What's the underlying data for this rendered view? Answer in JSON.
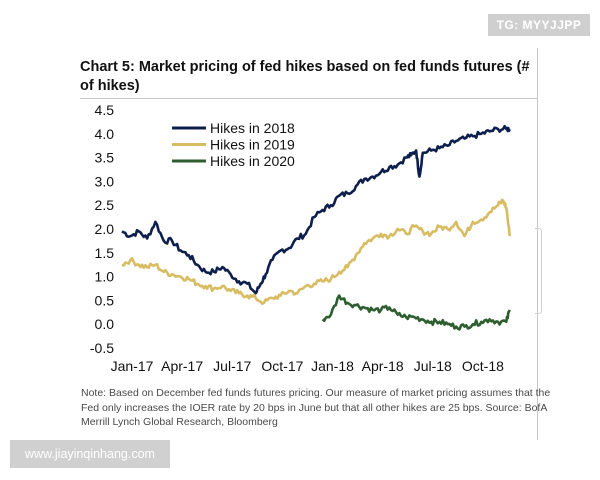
{
  "badge": "TG: MYYJJPP",
  "watermark": "www.jiayinqinhang.com",
  "chart_data": {
    "type": "line",
    "title": "Chart 5: Market pricing of fed hikes based on fed funds futures (# of hikes)",
    "xlabel": "",
    "ylabel": "",
    "ylim": [
      -0.5,
      4.5
    ],
    "yticks": [
      "-0.5",
      "0.0",
      "0.5",
      "1.0",
      "1.5",
      "2.0",
      "2.5",
      "3.0",
      "3.5",
      "4.0",
      "4.5"
    ],
    "xlim": [
      0,
      23.4
    ],
    "xticks": [
      {
        "label": "Jan-17",
        "x": 0
      },
      {
        "label": "Apr-17",
        "x": 3
      },
      {
        "label": "Jul-17",
        "x": 6
      },
      {
        "label": "Oct-17",
        "x": 9
      },
      {
        "label": "Jan-18",
        "x": 12
      },
      {
        "label": "Apr-18",
        "x": 15
      },
      {
        "label": "Jul-18",
        "x": 18
      },
      {
        "label": "Oct-18",
        "x": 21
      }
    ],
    "grid": false,
    "legend_position": "top-left",
    "series": [
      {
        "name": "Hikes in 2018",
        "color": "#0e1f4d",
        "x": [
          0,
          0.5,
          1,
          1.5,
          2,
          2.5,
          3,
          3.5,
          4,
          4.5,
          5,
          5.5,
          6,
          6.5,
          7,
          7.5,
          8,
          8.3,
          8.6,
          9,
          9.5,
          10,
          10.5,
          11,
          11.5,
          12,
          12.5,
          13,
          13.5,
          14,
          14.5,
          15,
          15.5,
          16,
          16.5,
          17,
          17.3,
          17.6,
          17.8,
          18,
          18.5,
          19,
          19.5,
          20,
          20.5,
          21,
          21.5,
          22,
          22.5,
          23,
          23.2
        ],
        "y": [
          1.95,
          1.85,
          1.95,
          1.8,
          2.15,
          1.75,
          1.75,
          1.55,
          1.45,
          1.25,
          1.1,
          1.1,
          1.2,
          1.05,
          0.9,
          0.85,
          0.65,
          0.85,
          1.05,
          1.35,
          1.55,
          1.6,
          1.8,
          1.9,
          2.25,
          2.4,
          2.5,
          2.7,
          2.75,
          2.9,
          3.05,
          3.1,
          3.2,
          3.3,
          3.35,
          3.5,
          3.55,
          3.65,
          3.1,
          3.6,
          3.65,
          3.7,
          3.75,
          3.85,
          3.9,
          3.95,
          4.0,
          4.05,
          4.1,
          4.1,
          4.1
        ]
      },
      {
        "name": "Hikes in 2019",
        "color": "#d8bc62",
        "x": [
          0,
          0.5,
          1,
          1.5,
          2,
          2.5,
          3,
          3.5,
          4,
          4.5,
          5,
          5.5,
          6,
          6.5,
          7,
          7.5,
          8,
          8.5,
          9,
          9.5,
          10,
          10.5,
          11,
          11.5,
          12,
          12.5,
          13,
          13.5,
          14,
          14.5,
          15,
          15.5,
          16,
          16.5,
          17,
          17.5,
          18,
          18.5,
          19,
          19.5,
          20,
          20.5,
          21,
          21.5,
          22,
          22.5,
          22.8,
          23,
          23.2
        ],
        "y": [
          1.25,
          1.35,
          1.25,
          1.2,
          1.25,
          1.1,
          1.05,
          1.0,
          0.95,
          0.85,
          0.8,
          0.75,
          0.8,
          0.7,
          0.65,
          0.6,
          0.55,
          0.45,
          0.55,
          0.6,
          0.7,
          0.65,
          0.8,
          0.85,
          0.9,
          0.95,
          1.1,
          1.2,
          1.45,
          1.7,
          1.8,
          1.9,
          1.85,
          2.0,
          1.9,
          2.05,
          1.95,
          1.9,
          2.05,
          2.0,
          2.15,
          1.85,
          2.15,
          2.2,
          2.35,
          2.5,
          2.6,
          2.45,
          1.85
        ]
      },
      {
        "name": "Hikes in 2020",
        "color": "#2e5e2f",
        "x": [
          12,
          12.5,
          13,
          13.5,
          14,
          14.5,
          15,
          15.5,
          16,
          16.5,
          17,
          17.5,
          18,
          18.5,
          19,
          19.5,
          20,
          20.5,
          21,
          21.5,
          22,
          22.5,
          23,
          23.2
        ],
        "y": [
          0.1,
          0.2,
          0.6,
          0.45,
          0.4,
          0.35,
          0.3,
          0.3,
          0.35,
          0.2,
          0.15,
          0.15,
          0.1,
          0.05,
          0.05,
          0.0,
          -0.05,
          -0.05,
          0.0,
          0.05,
          0.1,
          0.05,
          0.05,
          0.3
        ]
      }
    ]
  },
  "note": "Note: Based on December fed funds futures pricing. Our measure of market pricing assumes that the Fed only increases the IOER rate by 20 bps in June but that all other hikes are 25 bps. Source: BofA Merrill Lynch Global Research, Bloomberg"
}
